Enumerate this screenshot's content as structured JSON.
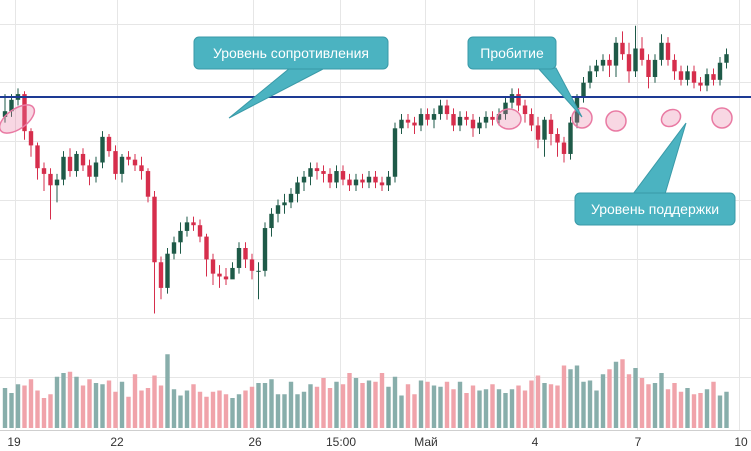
{
  "chart_data": {
    "type": "candlestick",
    "x_ticks": [
      "19",
      "22",
      "26",
      "15:00",
      "Май",
      "4",
      "7",
      "10"
    ],
    "price_range": [
      0,
      100
    ],
    "grid": true,
    "levels": [
      {
        "name": "resistance_support",
        "value": 73
      }
    ],
    "annotations": {
      "resistance": "Уровень сопротивления",
      "breakout": "Пробитие",
      "support": "Уровень поддержки"
    },
    "colors": {
      "up": "#1e5a48",
      "down": "#d62e4c",
      "volume_up": "#88aeab",
      "volume_down": "#f0a3aa",
      "level_line": "#1d3a94",
      "callout": "#4bb3c1",
      "highlight": "#e97aa3",
      "grid": "#e6e6e6"
    },
    "candles": [
      [
        66,
        68,
        74,
        64
      ],
      [
        68,
        72,
        74,
        66
      ],
      [
        72,
        74,
        76,
        70
      ],
      [
        74,
        61,
        75,
        58
      ],
      [
        61,
        56,
        62,
        52
      ],
      [
        56,
        48,
        57,
        44
      ],
      [
        48,
        46,
        50,
        40
      ],
      [
        46,
        42,
        48,
        30
      ],
      [
        42,
        44,
        46,
        36
      ],
      [
        44,
        52,
        54,
        42
      ],
      [
        52,
        47,
        55,
        45
      ],
      [
        47,
        53,
        54,
        45
      ],
      [
        53,
        49,
        55,
        47
      ],
      [
        49,
        45,
        51,
        42
      ],
      [
        45,
        50,
        52,
        43
      ],
      [
        50,
        59,
        61,
        48
      ],
      [
        59,
        54,
        60,
        52
      ],
      [
        54,
        46,
        56,
        44
      ],
      [
        46,
        52,
        53,
        43
      ],
      [
        52,
        51,
        54,
        49
      ],
      [
        51,
        49,
        53,
        47
      ],
      [
        49,
        47,
        52,
        44
      ],
      [
        47,
        38,
        48,
        36
      ],
      [
        38,
        15,
        40,
        -3
      ],
      [
        15,
        6,
        17,
        2
      ],
      [
        6,
        18,
        20,
        4
      ],
      [
        18,
        22,
        24,
        16
      ],
      [
        22,
        26,
        29,
        18
      ],
      [
        26,
        29,
        31,
        24
      ],
      [
        29,
        28,
        31,
        26
      ],
      [
        28,
        24,
        30,
        22
      ],
      [
        24,
        16,
        25,
        10
      ],
      [
        16,
        11,
        18,
        7
      ],
      [
        11,
        10,
        14,
        6
      ],
      [
        10,
        9,
        13,
        7
      ],
      [
        9,
        13,
        15,
        10
      ],
      [
        13,
        20,
        22,
        11
      ],
      [
        20,
        16,
        22,
        13
      ],
      [
        16,
        12,
        18,
        9
      ],
      [
        12,
        12,
        15,
        2
      ],
      [
        12,
        27,
        29,
        10
      ],
      [
        27,
        32,
        34,
        24
      ],
      [
        32,
        35,
        37,
        29
      ],
      [
        35,
        36,
        39,
        32
      ],
      [
        36,
        39,
        41,
        34
      ],
      [
        39,
        43,
        45,
        36
      ],
      [
        43,
        45,
        47,
        40
      ],
      [
        45,
        48,
        50,
        42
      ],
      [
        48,
        47,
        50,
        44
      ],
      [
        47,
        46,
        49,
        43
      ],
      [
        46,
        43,
        48,
        41
      ],
      [
        43,
        47,
        49,
        41
      ],
      [
        47,
        44,
        49,
        42
      ],
      [
        44,
        42,
        46,
        40
      ],
      [
        42,
        44,
        46,
        40
      ],
      [
        44,
        43,
        46,
        41
      ],
      [
        43,
        45,
        47,
        41
      ],
      [
        45,
        43,
        47,
        41
      ],
      [
        43,
        42,
        45,
        40
      ],
      [
        42,
        45,
        47,
        40
      ],
      [
        45,
        62,
        64,
        43
      ],
      [
        62,
        65,
        67,
        60
      ],
      [
        65,
        64,
        67,
        62
      ],
      [
        64,
        63,
        66,
        60
      ],
      [
        63,
        67,
        69,
        61
      ],
      [
        67,
        65,
        69,
        63
      ],
      [
        65,
        67,
        69,
        62
      ],
      [
        67,
        70,
        72,
        65
      ],
      [
        70,
        67,
        72,
        65
      ],
      [
        67,
        63,
        69,
        61
      ],
      [
        63,
        66,
        68,
        61
      ],
      [
        66,
        65,
        68,
        63
      ],
      [
        65,
        62,
        67,
        59
      ],
      [
        62,
        64,
        66,
        60
      ],
      [
        64,
        66,
        68,
        62
      ],
      [
        66,
        65,
        68,
        63
      ],
      [
        65,
        67,
        69,
        63
      ],
      [
        67,
        71,
        73,
        65
      ],
      [
        71,
        74,
        76,
        69
      ],
      [
        74,
        70,
        76,
        68
      ],
      [
        70,
        67,
        72,
        64
      ],
      [
        67,
        63,
        69,
        61
      ],
      [
        63,
        58,
        66,
        55
      ],
      [
        58,
        65,
        66,
        52
      ],
      [
        65,
        60,
        67,
        56
      ],
      [
        60,
        57,
        62,
        52
      ],
      [
        57,
        53,
        59,
        50
      ],
      [
        53,
        64,
        66,
        51
      ],
      [
        64,
        73,
        74,
        62
      ],
      [
        73,
        78,
        80,
        71
      ],
      [
        78,
        82,
        84,
        76
      ],
      [
        82,
        84,
        86,
        80
      ],
      [
        84,
        86,
        88,
        82
      ],
      [
        86,
        84,
        88,
        80
      ],
      [
        84,
        92,
        94,
        80
      ],
      [
        92,
        88,
        96,
        86
      ],
      [
        88,
        82,
        92,
        78
      ],
      [
        82,
        90,
        98,
        80
      ],
      [
        90,
        86,
        94,
        84
      ],
      [
        86,
        80,
        88,
        76
      ],
      [
        80,
        86,
        88,
        78
      ],
      [
        86,
        92,
        95,
        84
      ],
      [
        92,
        86,
        94,
        84
      ],
      [
        86,
        82,
        88,
        79
      ],
      [
        82,
        79,
        84,
        77
      ],
      [
        79,
        82,
        84,
        77
      ],
      [
        82,
        78,
        84,
        76
      ],
      [
        78,
        77,
        80,
        75
      ],
      [
        77,
        81,
        83,
        75
      ],
      [
        81,
        79,
        83,
        77
      ],
      [
        79,
        85,
        87,
        77
      ],
      [
        85,
        88,
        90,
        83
      ]
    ],
    "volumes": [
      32,
      28,
      35,
      34,
      39,
      30,
      24,
      27,
      41,
      44,
      45,
      41,
      34,
      39,
      36,
      35,
      38,
      29,
      37,
      25,
      43,
      30,
      32,
      42,
      34,
      59,
      31,
      26,
      30,
      35,
      29,
      25,
      29,
      30,
      27,
      24,
      27,
      30,
      33,
      36,
      36,
      39,
      27,
      27,
      37,
      27,
      29,
      35,
      33,
      40,
      32,
      37,
      35,
      44,
      40,
      36,
      38,
      37,
      44,
      33,
      41,
      26,
      35,
      27,
      38,
      37,
      34,
      33,
      37,
      31,
      37,
      28,
      34,
      30,
      31,
      35,
      31,
      28,
      31,
      34,
      30,
      38,
      42,
      36,
      35,
      34,
      50,
      47,
      50,
      37,
      38,
      30,
      43,
      47,
      53,
      55,
      43,
      48,
      40,
      35,
      36,
      44,
      31,
      36,
      29,
      32,
      27,
      28,
      31,
      37,
      26,
      29
    ]
  }
}
